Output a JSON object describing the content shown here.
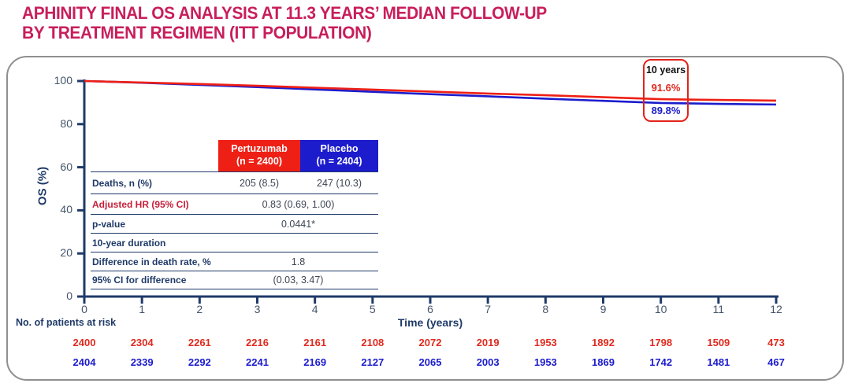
{
  "title": {
    "line1": "APHINITY FINAL OS ANALYSIS AT 11.3 YEARS’ MEDIAN FOLLOW-UP",
    "line2": "BY TREATMENT REGIMEN (ITT POPULATION)"
  },
  "colors": {
    "title": "#c81e5b",
    "pertuzumab_red": "#ee2015",
    "placebo_blue": "#1c1ccd",
    "axis_navy": "#1f3a68",
    "tick_label": "#44546a",
    "annotation_border": "#e2231a"
  },
  "annotation": {
    "label": "10 years",
    "pertuzumab_value": "91.6%",
    "placebo_value": "89.8%"
  },
  "table": {
    "columns": [
      {
        "name": "Pertuzumab",
        "n": "(n = 2400)"
      },
      {
        "name": "Placebo",
        "n": "(n = 2404)"
      }
    ],
    "rows": [
      {
        "label": "Deaths, n (%)",
        "values": [
          "205 (8.5)",
          "247 (10.3)"
        ]
      },
      {
        "label": "Adjusted HR (95% CI)",
        "merged": "0.83 (0.69, 1.00)"
      },
      {
        "label": "p-value",
        "merged": "0.0441*"
      },
      {
        "label": "10-year duration",
        "merged": ""
      },
      {
        "label": "Difference in death rate, %",
        "merged": "1.8"
      },
      {
        "label": "95% CI for difference",
        "merged": "(0.03, 3.47)"
      }
    ]
  },
  "chart_data": {
    "type": "line",
    "title": "",
    "xlabel": "Time (years)",
    "ylabel": "OS (%)",
    "xlim": [
      0,
      12
    ],
    "ylim": [
      0,
      100
    ],
    "x_ticks": [
      0,
      1,
      2,
      3,
      4,
      5,
      6,
      7,
      8,
      9,
      10,
      11,
      12
    ],
    "y_ticks": [
      0,
      20,
      40,
      60,
      80,
      100
    ],
    "grid": false,
    "legend_position": "none",
    "annotated_points": {
      "time_years": 10,
      "Pertuzumab": 91.6,
      "Placebo": 89.8
    },
    "series": [
      {
        "name": "Pertuzumab",
        "color": "#ee2015",
        "x": [
          0,
          1,
          2,
          3,
          4,
          5,
          6,
          7,
          8,
          9,
          10,
          11,
          12
        ],
        "values": [
          100,
          99.3,
          98.6,
          97.8,
          96.9,
          96.0,
          95.1,
          94.2,
          93.4,
          92.5,
          91.6,
          91.2,
          90.9
        ]
      },
      {
        "name": "Placebo",
        "color": "#1c1ccd",
        "x": [
          0,
          1,
          2,
          3,
          4,
          5,
          6,
          7,
          8,
          9,
          10,
          11,
          12
        ],
        "values": [
          100,
          99.2,
          98.2,
          97.2,
          96.1,
          95.0,
          93.9,
          92.9,
          91.8,
          90.8,
          89.8,
          89.4,
          89.1
        ]
      }
    ]
  },
  "at_risk": {
    "label": "No. of patients at risk",
    "rows": [
      {
        "name": "Pertuzumab",
        "color": "#e02a1e",
        "counts": [
          2400,
          2304,
          2261,
          2216,
          2161,
          2108,
          2072,
          2019,
          1953,
          1892,
          1798,
          1509,
          473
        ]
      },
      {
        "name": "Placebo",
        "color": "#1c1ccd",
        "counts": [
          2404,
          2339,
          2292,
          2241,
          2169,
          2127,
          2065,
          2003,
          1953,
          1869,
          1742,
          1481,
          467
        ]
      }
    ]
  }
}
